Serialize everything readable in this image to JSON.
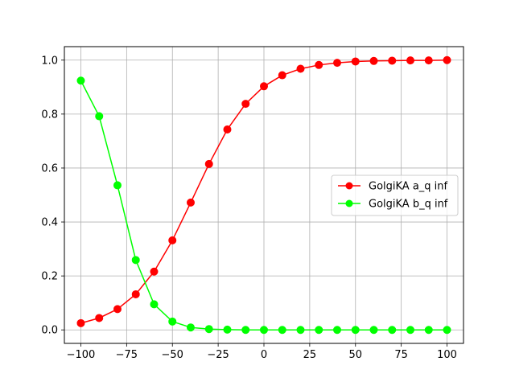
{
  "chart_data": {
    "type": "line",
    "x": [
      -100,
      -90,
      -80,
      -70,
      -60,
      -50,
      -40,
      -30,
      -20,
      -10,
      0,
      10,
      20,
      30,
      40,
      50,
      60,
      70,
      80,
      90,
      100
    ],
    "series": [
      {
        "name": "GolgiKA a_q inf",
        "color": "#ff0000",
        "marker": "circle",
        "values": [
          0.025,
          0.044,
          0.077,
          0.132,
          0.216,
          0.332,
          0.472,
          0.615,
          0.743,
          0.838,
          0.903,
          0.944,
          0.968,
          0.982,
          0.99,
          0.995,
          0.997,
          0.998,
          0.999,
          0.999,
          1.0
        ]
      },
      {
        "name": "GolgiKA b_q inf",
        "color": "#00ff00",
        "marker": "circle",
        "values": [
          0.924,
          0.792,
          0.536,
          0.259,
          0.095,
          0.031,
          0.009,
          0.003,
          0.001,
          0.0,
          0.0,
          0.0,
          0.0,
          0.0,
          0.0,
          0.0,
          0.0,
          0.0,
          0.0,
          0.0,
          0.0
        ]
      }
    ],
    "title": "",
    "xlabel": "",
    "ylabel": "",
    "xlim": [
      -109,
      109
    ],
    "ylim": [
      -0.05,
      1.05
    ],
    "xticks": [
      -100,
      -75,
      -50,
      -25,
      0,
      25,
      50,
      75,
      100
    ],
    "xtick_labels": [
      "−100",
      "−75",
      "−50",
      "−25",
      "0",
      "25",
      "50",
      "75",
      "100"
    ],
    "yticks": [
      0.0,
      0.2,
      0.4,
      0.6,
      0.8,
      1.0
    ],
    "ytick_labels": [
      "0.0",
      "0.2",
      "0.4",
      "0.6",
      "0.8",
      "1.0"
    ],
    "grid": true,
    "legend_position": "center-right"
  }
}
